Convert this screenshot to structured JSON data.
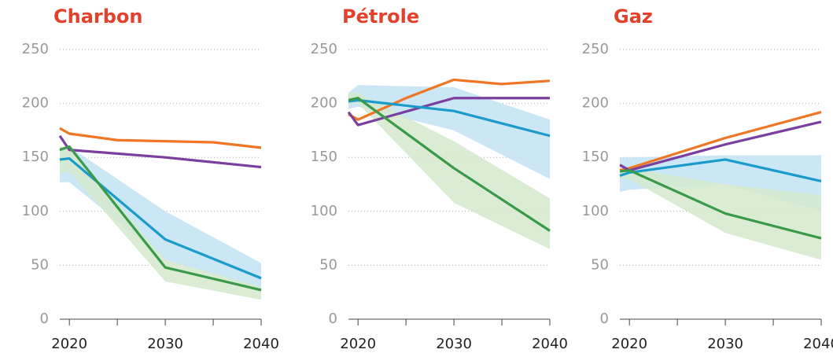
{
  "chart_data": [
    {
      "type": "line",
      "title": "Charbon",
      "xlim": [
        2019,
        2040
      ],
      "xticks": [
        2020,
        2030,
        2040
      ],
      "xminorticks": [
        2025,
        2035
      ],
      "ylim": [
        0,
        250
      ],
      "yticks": [
        0,
        50,
        100,
        150,
        200,
        250
      ],
      "grid": true,
      "bands": [
        {
          "color": "#c2e2f3",
          "x": [
            2019,
            2020,
            2030,
            2040
          ],
          "upper": [
            160,
            160,
            100,
            52
          ],
          "lower": [
            127,
            127,
            55,
            28
          ]
        },
        {
          "color": "#d5e9cd",
          "x": [
            2019,
            2020,
            2030,
            2040
          ],
          "upper": [
            160,
            160,
            55,
            30
          ],
          "lower": [
            135,
            137,
            35,
            18
          ]
        }
      ],
      "series": [
        {
          "color": "#f07623",
          "x": [
            2019,
            2020,
            2025,
            2030,
            2035,
            2040
          ],
          "values": [
            177,
            172,
            166,
            165,
            164,
            159
          ]
        },
        {
          "color": "#7b3fa0",
          "x": [
            2019,
            2020,
            2030,
            2040
          ],
          "values": [
            170,
            157,
            150,
            141
          ]
        },
        {
          "color": "#1a9bc9",
          "x": [
            2019,
            2020,
            2030,
            2040
          ],
          "values": [
            148,
            149,
            74,
            38
          ]
        },
        {
          "color": "#3a9a4a",
          "x": [
            2019,
            2020,
            2030,
            2040
          ],
          "values": [
            157,
            160,
            48,
            27
          ]
        }
      ]
    },
    {
      "type": "line",
      "title": "Pétrole",
      "xlim": [
        2019,
        2040
      ],
      "xticks": [
        2020,
        2030,
        2040
      ],
      "xminorticks": [
        2025,
        2035
      ],
      "ylim": [
        0,
        250
      ],
      "yticks": [
        0,
        50,
        100,
        150,
        200,
        250
      ],
      "grid": true,
      "bands": [
        {
          "color": "#c2e2f3",
          "x": [
            2019,
            2020,
            2030,
            2040
          ],
          "upper": [
            210,
            217,
            215,
            185
          ],
          "lower": [
            195,
            197,
            175,
            130
          ]
        },
        {
          "color": "#d5e9cd",
          "x": [
            2019,
            2020,
            2030,
            2040
          ],
          "upper": [
            210,
            210,
            165,
            112
          ],
          "lower": [
            200,
            200,
            108,
            65
          ]
        }
      ],
      "series": [
        {
          "color": "#f07623",
          "x": [
            2019,
            2020,
            2025,
            2030,
            2035,
            2040
          ],
          "values": [
            190,
            185,
            205,
            222,
            218,
            221
          ]
        },
        {
          "color": "#7b3fa0",
          "x": [
            2019,
            2020,
            2030,
            2040
          ],
          "values": [
            192,
            180,
            205,
            205
          ]
        },
        {
          "color": "#1a9bc9",
          "x": [
            2019,
            2020,
            2030,
            2040
          ],
          "values": [
            202,
            203,
            193,
            170
          ]
        },
        {
          "color": "#3a9a4a",
          "x": [
            2019,
            2020,
            2030,
            2040
          ],
          "values": [
            203,
            205,
            140,
            82
          ]
        }
      ]
    },
    {
      "type": "line",
      "title": "Gaz",
      "xlim": [
        2019,
        2040
      ],
      "xticks": [
        2020,
        2030,
        2040
      ],
      "xminorticks": [
        2025,
        2035
      ],
      "ylim": [
        0,
        250
      ],
      "yticks": [
        0,
        50,
        100,
        150,
        200,
        250
      ],
      "grid": true,
      "bands": [
        {
          "color": "#c2e2f3",
          "x": [
            2019,
            2020,
            2030,
            2040
          ],
          "upper": [
            150,
            150,
            152,
            152
          ],
          "lower": [
            118,
            120,
            125,
            100
          ]
        },
        {
          "color": "#d5e9cd",
          "x": [
            2019,
            2020,
            2030,
            2040
          ],
          "upper": [
            140,
            140,
            125,
            115
          ],
          "lower": [
            130,
            130,
            80,
            55
          ]
        }
      ],
      "series": [
        {
          "color": "#f07623",
          "x": [
            2019,
            2020,
            2030,
            2040
          ],
          "values": [
            138,
            140,
            168,
            192
          ]
        },
        {
          "color": "#7b3fa0",
          "x": [
            2019,
            2020,
            2030,
            2040
          ],
          "values": [
            143,
            138,
            162,
            183
          ]
        },
        {
          "color": "#1a9bc9",
          "x": [
            2019,
            2020,
            2030,
            2040
          ],
          "values": [
            133,
            136,
            148,
            128
          ]
        },
        {
          "color": "#3a9a4a",
          "x": [
            2019,
            2020,
            2030,
            2040
          ],
          "values": [
            137,
            138,
            98,
            75
          ]
        }
      ]
    }
  ]
}
